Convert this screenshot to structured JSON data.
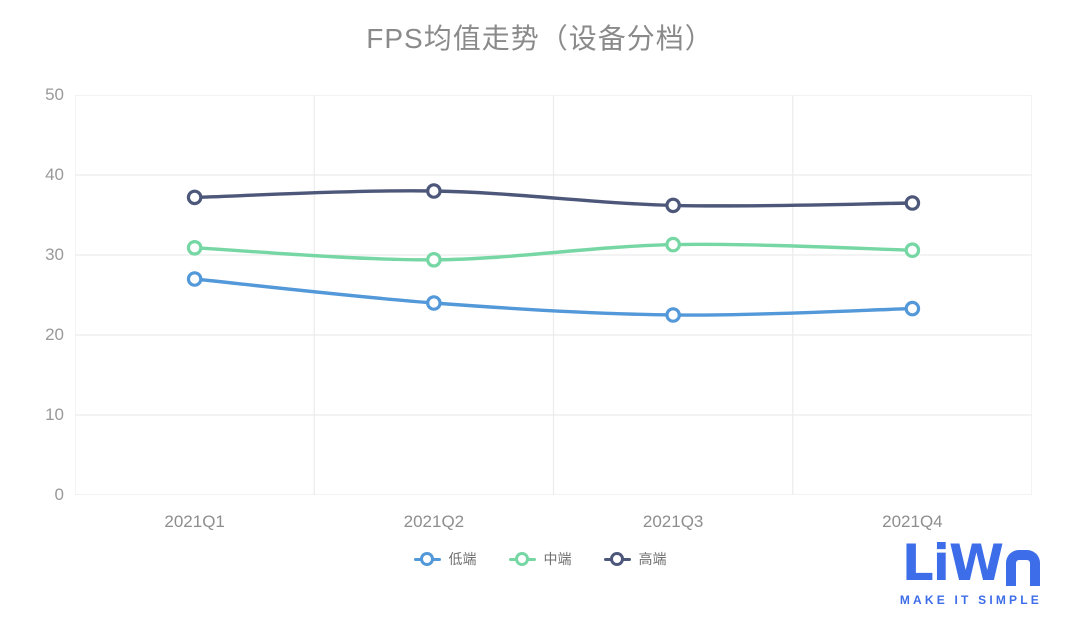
{
  "chart_data": {
    "type": "line",
    "title": "FPS均值走势（设备分档）",
    "categories": [
      "2021Q1",
      "2021Q2",
      "2021Q3",
      "2021Q4"
    ],
    "series": [
      {
        "name": "低端",
        "color": "#5398d8",
        "values": [
          27.0,
          24.0,
          22.5,
          23.3
        ]
      },
      {
        "name": "中端",
        "color": "#76d7a4",
        "values": [
          30.9,
          29.4,
          31.3,
          30.6
        ]
      },
      {
        "name": "高端",
        "color": "#4d577a",
        "values": [
          37.2,
          38.0,
          36.2,
          36.5
        ]
      }
    ],
    "xlabel": "",
    "ylabel": "",
    "ylim": [
      0,
      50
    ],
    "y_ticks": [
      0,
      10,
      20,
      30,
      40,
      50
    ],
    "grid": true,
    "smooth": true,
    "legend_position": "bottom",
    "marker": {
      "shape": "open-circle",
      "fill": "#ffffff"
    }
  },
  "logo": {
    "brand": "LiWA",
    "tagline": "MAKE IT SIMPLE",
    "color": "#3d6de8"
  },
  "style": {
    "background": "#ffffff",
    "title_color": "#8a8a8a",
    "axis_label_color": "#999999",
    "grid_color": "#ececec",
    "legend_label_color": "#707070"
  }
}
